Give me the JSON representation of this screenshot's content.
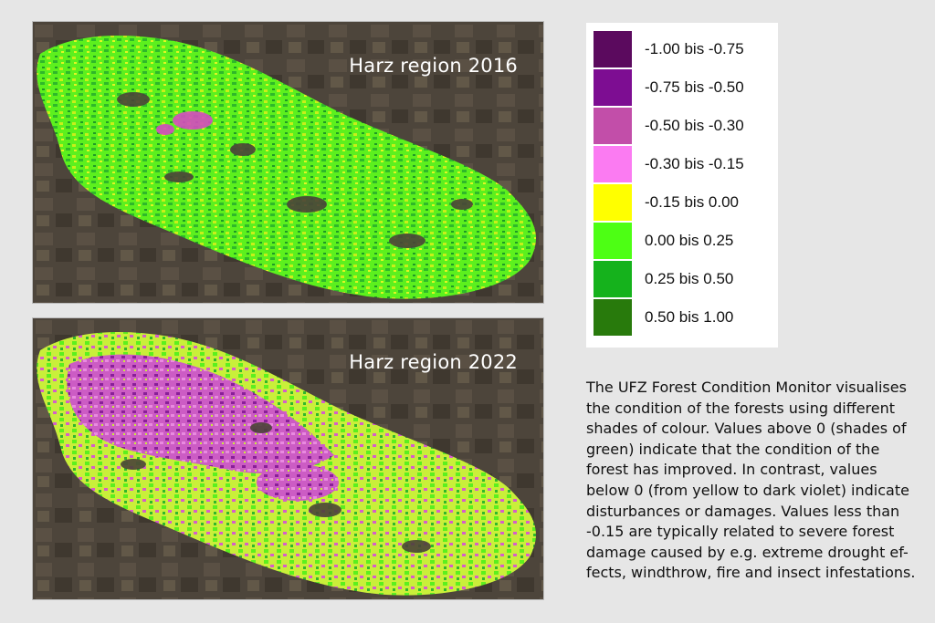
{
  "maps": [
    {
      "title": "Harz region 2016"
    },
    {
      "title": "Harz region 2022"
    }
  ],
  "legend": {
    "items": [
      {
        "label": "-1.00 bis -0.75",
        "color": "#5b0a5e"
      },
      {
        "label": "-0.75 bis -0.50",
        "color": "#7d0d92"
      },
      {
        "label": "-0.50 bis -0.30",
        "color": "#c24ea9"
      },
      {
        "label": "-0.30 bis -0.15",
        "color": "#fb7bf2"
      },
      {
        "label": "-0.15 bis 0.00",
        "color": "#ffff00"
      },
      {
        "label": "0.00 bis 0.25",
        "color": "#4dff14"
      },
      {
        "label": "0.25 bis 0.50",
        "color": "#15b21c"
      },
      {
        "label": "0.50 bis 1.00",
        "color": "#287a0c"
      }
    ]
  },
  "description": "The UFZ Forest Condition Monitor visualises\nthe condition of the forests using different\nshades of colour. Values above 0 (shades of\ngreen) indicate that the condition of the\nforest has improved. In contrast, values\nbelow 0 (from yellow to dark violet) indicate\ndisturbances or damages. Values less than\n-0.15 are typically related to severe forest\ndamage caused by e.g. extreme drought ef-\nfects, windthrow, fire and insect infestations."
}
